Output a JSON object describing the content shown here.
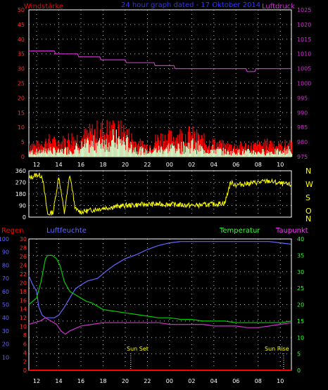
{
  "page": {
    "header_wind": "Windstärke",
    "header_title": "24 hour graph dated - 17 Oktober 2014",
    "header_pressure": "Luftdruck",
    "bottom_regen": "Regen",
    "bottom_feuchte": "Luftfeuchte",
    "bottom_temp": "Temperatur",
    "bottom_taupunkt": "Taupunkt",
    "sunset_label": "Sun Set",
    "sunrise_label": "Sun Rise"
  },
  "colors": {
    "wind_avg": "#ccffcc",
    "wind_gust": "#ff0000",
    "pressure": "#cc33cc",
    "direction": "#ffff00",
    "humidity": "#6666ff",
    "temperature": "#00cc00",
    "dewpoint": "#cc33cc",
    "rain": "#ff0000",
    "grid": "#ffffff"
  },
  "chart_data": [
    {
      "type": "area",
      "name": "wind_pressure",
      "x_ticks": [
        "12",
        "14",
        "16",
        "18",
        "20",
        "22",
        "00",
        "02",
        "04",
        "06",
        "08",
        "10"
      ],
      "y_left_ticks": [
        0,
        5,
        10,
        15,
        20,
        25,
        30,
        35,
        40,
        45,
        50
      ],
      "y_right_ticks": [
        975,
        980,
        985,
        990,
        995,
        1000,
        1005,
        1010,
        1015,
        1020,
        1025
      ],
      "ylim_left": [
        0,
        50
      ],
      "ylim_right": [
        975,
        1025
      ],
      "x_range": [
        11.3,
        35.0
      ],
      "pressure": {
        "x": [
          11.3,
          13.6,
          13.7,
          15.7,
          15.8,
          17.7,
          17.8,
          20.0,
          20.1,
          22.6,
          22.7,
          24.4,
          24.5,
          30.9,
          31.0,
          31.7,
          31.8,
          35.0
        ],
        "y": [
          1011,
          1011,
          1010,
          1010,
          1009,
          1009,
          1008,
          1008,
          1007,
          1007,
          1006,
          1006,
          1005,
          1005,
          1004,
          1004,
          1005,
          1005
        ]
      },
      "wind_gust_profile": {
        "x": [
          11.3,
          12.0,
          13.0,
          14.0,
          15.0,
          16.0,
          17.0,
          18.0,
          19.0,
          20.0,
          21.0,
          22.0,
          23.0,
          24.0,
          25.0,
          26.0,
          27.0,
          28.0,
          29.0,
          30.0,
          31.0,
          32.0,
          33.0,
          34.0,
          35.0
        ],
        "y": [
          5,
          4,
          6,
          5,
          7,
          7,
          9,
          10,
          10,
          9,
          5,
          4,
          7,
          7,
          8,
          8,
          6,
          5,
          4,
          4,
          4,
          4,
          5,
          4,
          5
        ]
      },
      "wind_avg_profile": {
        "x": [
          11.3,
          12.0,
          13.0,
          14.0,
          15.0,
          16.0,
          17.0,
          18.0,
          19.0,
          20.0,
          21.0,
          22.0,
          23.0,
          24.0,
          25.0,
          26.0,
          27.0,
          28.0,
          29.0,
          30.0,
          31.0,
          32.0,
          33.0,
          34.0,
          35.0
        ],
        "y": [
          2,
          2,
          3,
          2,
          3,
          4,
          5,
          7,
          7,
          6,
          3,
          2,
          3,
          4,
          4,
          5,
          3,
          3,
          2,
          2,
          2,
          2,
          2,
          2,
          3
        ]
      }
    },
    {
      "type": "scatter",
      "name": "wind_direction",
      "y_ticks": [
        0,
        90,
        180,
        270,
        360
      ],
      "y_labels_right": [
        "N",
        "W",
        "S",
        "O",
        "N"
      ],
      "ylim": [
        0,
        360
      ],
      "x": [
        11.3,
        12.0,
        12.5,
        13.0,
        13.5,
        14.0,
        14.5,
        15.0,
        15.5,
        16.0,
        18.0,
        20.0,
        22.0,
        24.0,
        26.0,
        28.0,
        29.0,
        29.5,
        30.0,
        31.0,
        32.0,
        33.0,
        34.0,
        35.0
      ],
      "y": [
        300,
        330,
        320,
        20,
        40,
        320,
        30,
        330,
        60,
        40,
        70,
        90,
        100,
        100,
        90,
        100,
        110,
        270,
        250,
        260,
        270,
        280,
        260,
        250
      ]
    },
    {
      "type": "line",
      "name": "humidity_temperature",
      "x_ticks": [
        "12",
        "14",
        "16",
        "18",
        "20",
        "22",
        "00",
        "02",
        "04",
        "06",
        "08",
        "10"
      ],
      "regen_ticks": [
        0,
        2,
        4,
        6,
        8,
        10,
        12,
        14,
        16,
        18,
        20,
        22,
        24,
        26,
        28,
        30
      ],
      "humidity_ticks": [
        10,
        20,
        30,
        40,
        50,
        60,
        70,
        80,
        90,
        100
      ],
      "temp_ticks": [
        0,
        5,
        10,
        15,
        20,
        25,
        30,
        35,
        40
      ],
      "ylim_temp": [
        0,
        40
      ],
      "ylim_humidity": [
        0,
        100
      ],
      "series": [
        {
          "name": "Luftfeuchte",
          "x": [
            11.3,
            11.6,
            12.0,
            12.2,
            12.5,
            12.8,
            13.2,
            13.6,
            14.0,
            14.5,
            15.0,
            15.5,
            16.0,
            16.6,
            17.5,
            18.2,
            19.0,
            20.0,
            21.0,
            22.0,
            23.0,
            24.0,
            25.0,
            26.0,
            27.0,
            28.0,
            29.0,
            30.0,
            31.0,
            32.0,
            33.0,
            34.0,
            35.0
          ],
          "y": [
            72,
            66,
            60,
            48,
            42,
            40,
            40,
            40,
            42,
            48,
            55,
            62,
            65,
            68,
            70,
            75,
            80,
            85,
            88,
            92,
            95,
            97,
            98,
            98,
            98,
            98,
            98,
            98,
            98,
            98,
            98,
            97,
            96
          ]
        },
        {
          "name": "Temperatur",
          "x": [
            11.3,
            12.0,
            12.4,
            12.8,
            13.0,
            13.4,
            13.8,
            14.1,
            14.5,
            15.0,
            15.5,
            16.0,
            16.5,
            17.0,
            17.5,
            18.0,
            19.0,
            20.0,
            21.0,
            22.0,
            23.0,
            24.0,
            25.0,
            26.0,
            27.0,
            28.0,
            29.0,
            30.0,
            31.0,
            32.0,
            33.0,
            34.0,
            35.0
          ],
          "y": [
            20,
            22,
            27,
            34,
            35,
            35,
            34,
            32,
            27,
            24,
            23,
            22,
            21,
            20.5,
            19.5,
            18.5,
            18,
            17.5,
            17,
            16.5,
            16,
            16,
            15.5,
            15.5,
            15,
            15,
            15,
            14.5,
            14.5,
            14.5,
            14.5,
            14.5,
            15
          ]
        },
        {
          "name": "Taupunkt",
          "x": [
            11.3,
            11.8,
            12.3,
            12.8,
            13.3,
            13.8,
            14.2,
            14.6,
            15.0,
            16.0,
            17.0,
            18.0,
            19.0,
            20.0,
            21.0,
            22.0,
            23.0,
            24.0,
            25.0,
            26.0,
            27.0,
            28.0,
            29.0,
            30.0,
            31.0,
            32.0,
            33.0,
            34.0,
            35.0
          ],
          "y": [
            14,
            14.5,
            15,
            16,
            15,
            14,
            12,
            11,
            12,
            13.5,
            14,
            14.5,
            14.5,
            14.5,
            14.5,
            14.5,
            14.5,
            14,
            14,
            14,
            14,
            13.5,
            13.5,
            13.5,
            13,
            13,
            13.5,
            14,
            14.5
          ]
        },
        {
          "name": "Regen",
          "x": [
            11.3,
            35.0
          ],
          "y": [
            0,
            0
          ]
        }
      ],
      "sunset_x": 20.5,
      "sunrise_x": 34.3
    }
  ]
}
